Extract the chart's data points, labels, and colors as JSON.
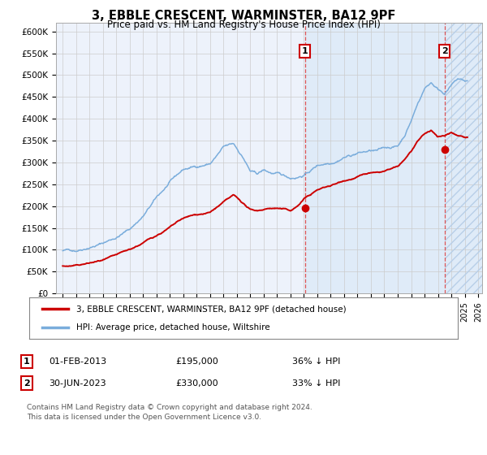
{
  "title": "3, EBBLE CRESCENT, WARMINSTER, BA12 9PF",
  "subtitle": "Price paid vs. HM Land Registry's House Price Index (HPI)",
  "ylim": [
    0,
    620000
  ],
  "yticks": [
    0,
    50000,
    100000,
    150000,
    200000,
    250000,
    300000,
    350000,
    400000,
    450000,
    500000,
    550000,
    600000
  ],
  "ytick_labels": [
    "£0",
    "£50K",
    "£100K",
    "£150K",
    "£200K",
    "£250K",
    "£300K",
    "£350K",
    "£400K",
    "£450K",
    "£500K",
    "£550K",
    "£600K"
  ],
  "background_color": "#ffffff",
  "plot_bg_color": "#edf2fb",
  "grid_color": "#cccccc",
  "hpi_color": "#7aaddc",
  "price_color": "#cc0000",
  "marker1_x": 2013.08,
  "marker1_y": 195000,
  "marker2_x": 2023.5,
  "marker2_y": 330000,
  "legend_line1": "3, EBBLE CRESCENT, WARMINSTER, BA12 9PF (detached house)",
  "legend_line2": "HPI: Average price, detached house, Wiltshire",
  "row1_date": "01-FEB-2013",
  "row1_price": "£195,000",
  "row1_hpi": "36% ↓ HPI",
  "row2_date": "30-JUN-2023",
  "row2_price": "£330,000",
  "row2_hpi": "33% ↓ HPI",
  "footer": "Contains HM Land Registry data © Crown copyright and database right 2024.\nThis data is licensed under the Open Government Licence v3.0.",
  "xmin": 1995,
  "xmax": 2026
}
